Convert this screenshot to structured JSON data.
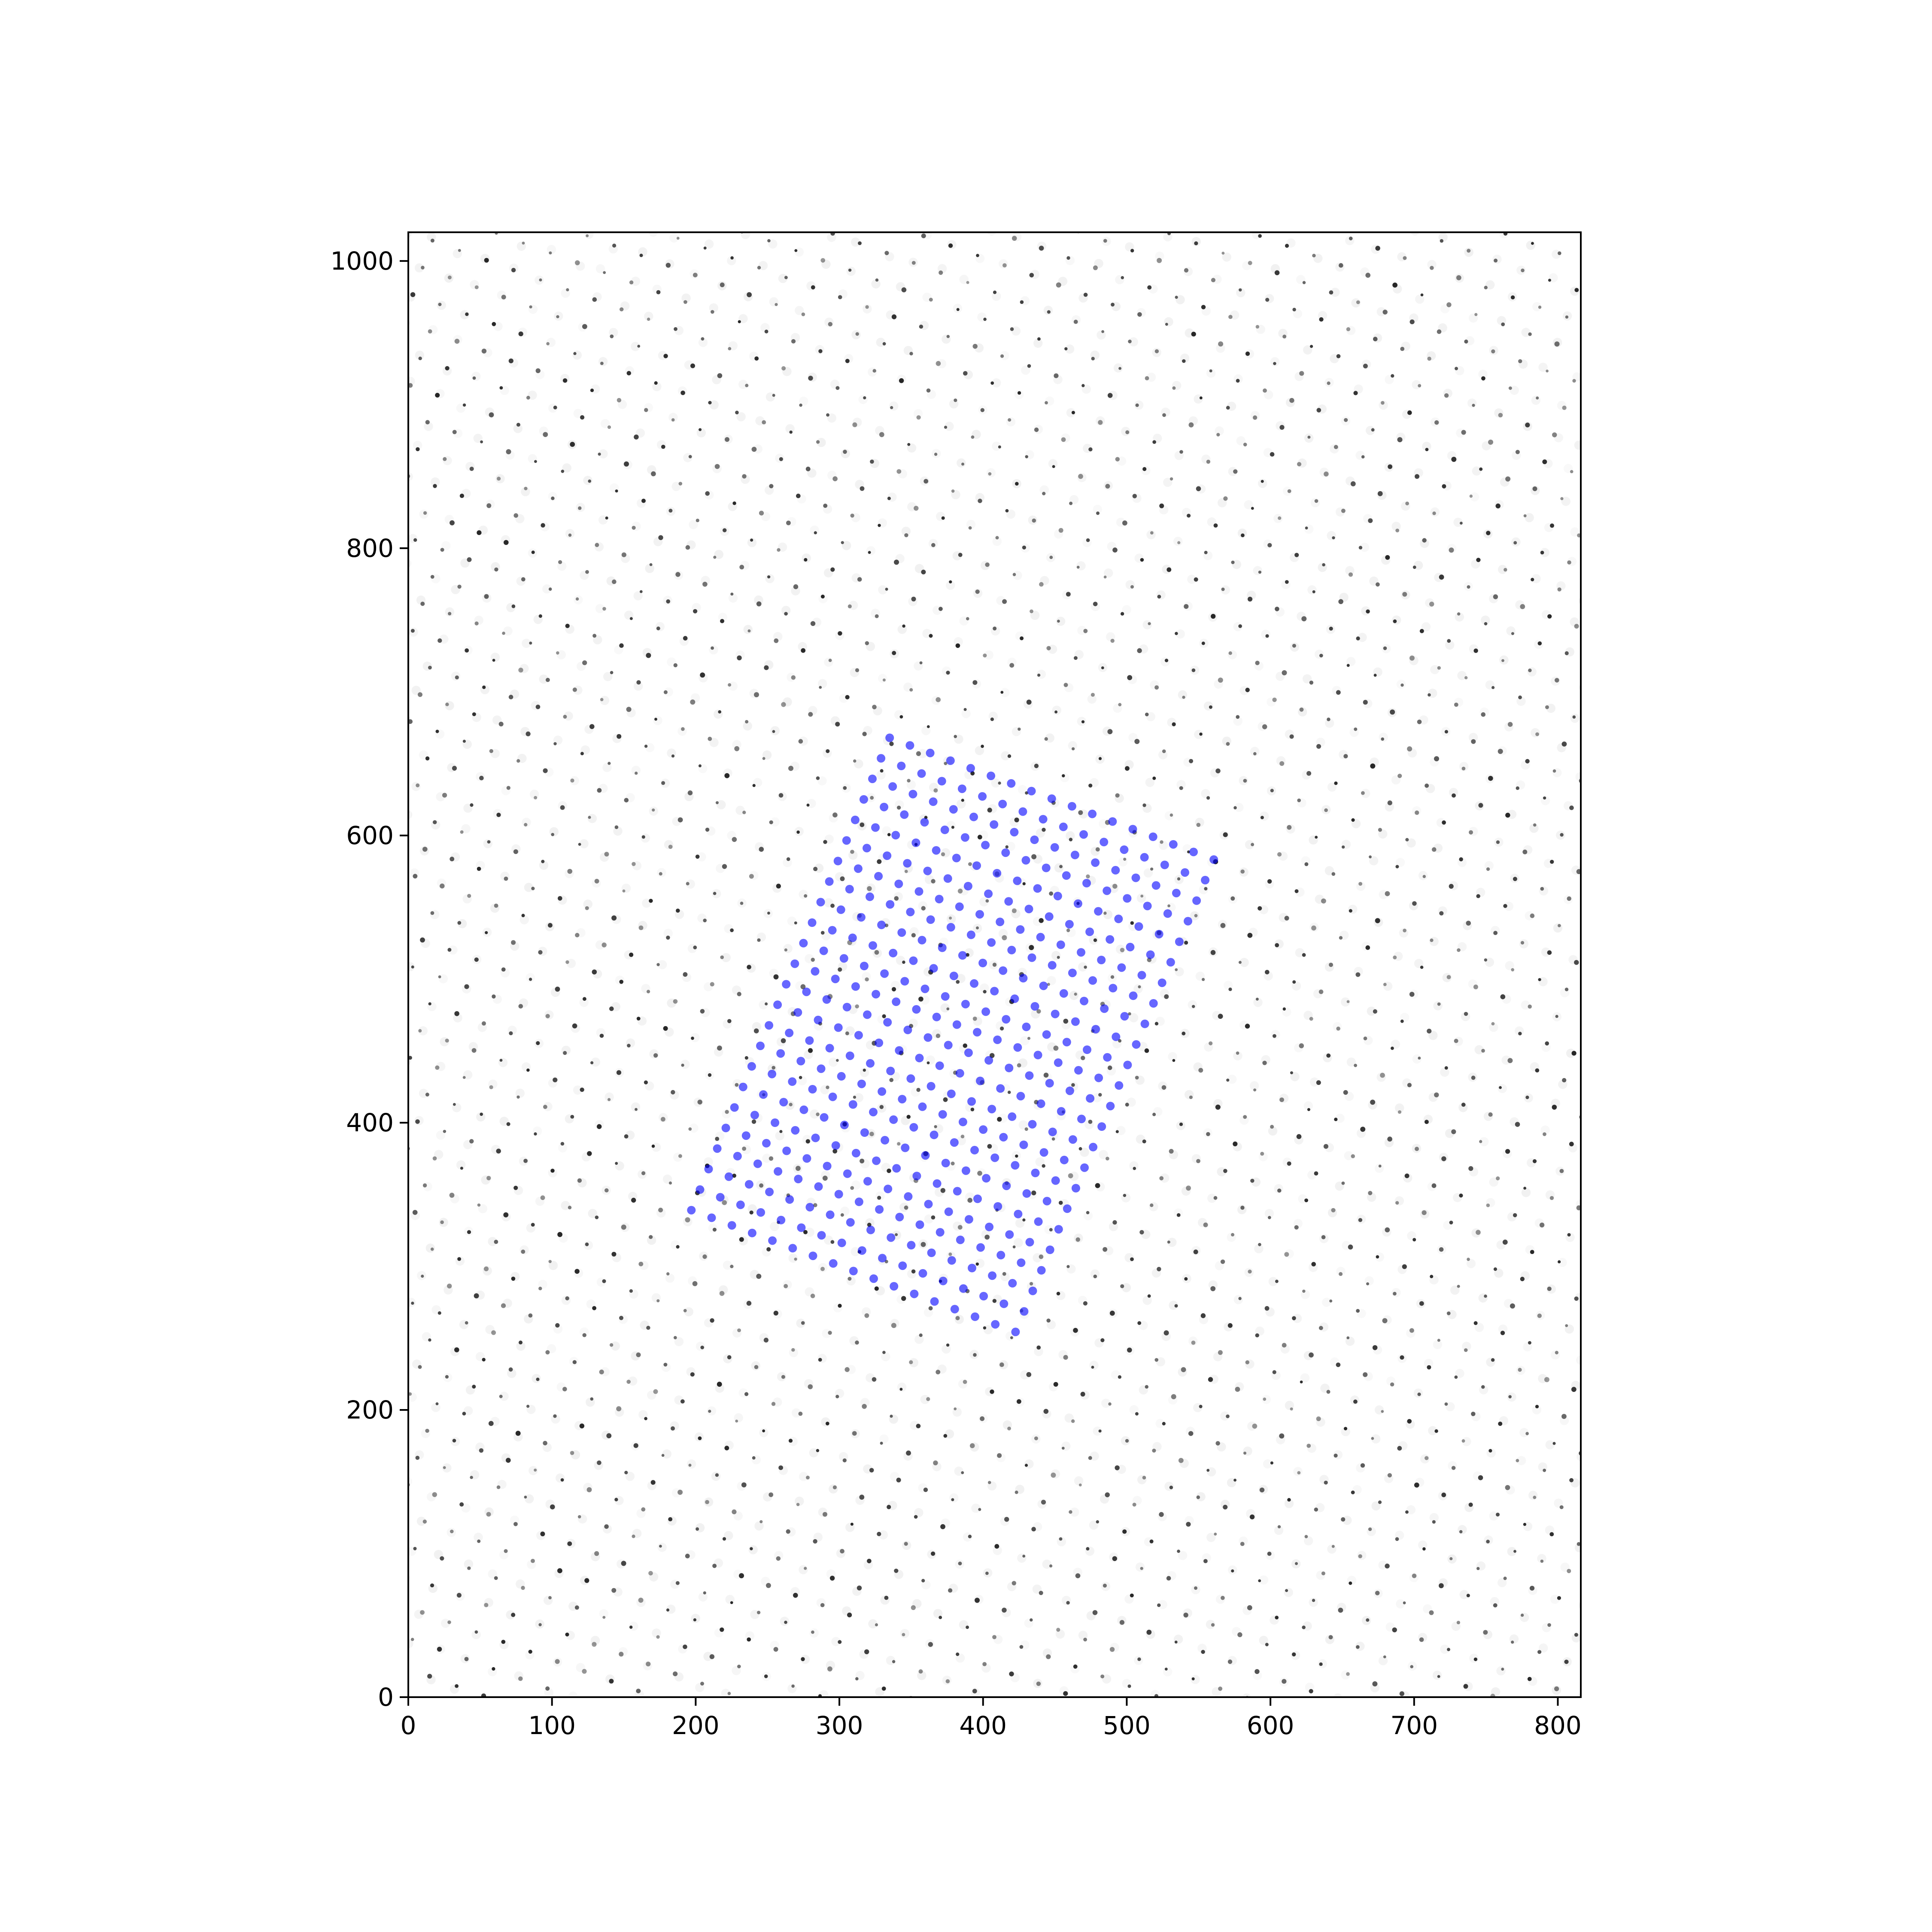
{
  "chart_data": {
    "type": "scatter",
    "title": "",
    "xlabel": "",
    "ylabel": "",
    "xlim": [
      0,
      816
    ],
    "ylim": [
      0,
      1020
    ],
    "xticks": [
      0,
      100,
      200,
      300,
      400,
      500,
      600,
      700,
      800
    ],
    "yticks": [
      0,
      200,
      400,
      600,
      800,
      1000
    ],
    "xtick_labels": [
      "0",
      "100",
      "200",
      "300",
      "400",
      "500",
      "600",
      "700",
      "800"
    ],
    "ytick_labels": [
      "0",
      "200",
      "400",
      "600",
      "800",
      "1000"
    ],
    "grid": false,
    "background": {
      "kind": "grayscale atomic-lattice image",
      "lattice_period": 20,
      "spot_color": "#1a1a1a"
    },
    "series": [
      {
        "color": "#0000ff",
        "alpha": 0.6,
        "marker": "circle",
        "grid_origin": [
          335,
          668
        ],
        "step_a": [
          14.1,
          -5.3
        ],
        "step_b": [
          -6.0,
          -14.3
        ],
        "rows": 24,
        "cols": 17
      }
    ]
  }
}
